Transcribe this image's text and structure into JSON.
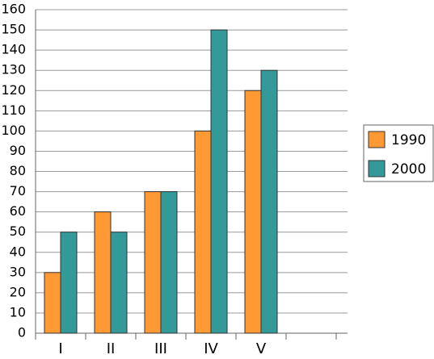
{
  "chart_data": {
    "type": "bar",
    "categories": [
      "I",
      "II",
      "III",
      "IV",
      "V",
      null
    ],
    "series": [
      {
        "name": "1990",
        "color": "#ff9933",
        "values": [
          30,
          60,
          70,
          100,
          120,
          null
        ]
      },
      {
        "name": "2000",
        "color": "#339999",
        "values": [
          50,
          50,
          70,
          150,
          130,
          null
        ]
      }
    ],
    "ylim": [
      0,
      160
    ],
    "yticks": [
      0,
      10,
      20,
      30,
      40,
      50,
      60,
      70,
      80,
      90,
      100,
      110,
      120,
      130,
      140,
      150,
      160
    ],
    "grid": true,
    "legend": "right"
  }
}
